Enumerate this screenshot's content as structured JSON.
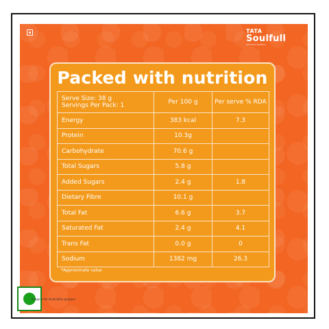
{
  "brand": {
    "parent": "TATA",
    "name": "Soulfull",
    "tagline": "Goodness Nutrition"
  },
  "card": {
    "title": "Packed with nutrition",
    "header": {
      "serve_size": "Serve Size: 38 g",
      "servings": "Servings Per Pack: 1",
      "per100": "Per 100 g",
      "rda": "Per serve % RDA"
    },
    "rows": [
      {
        "nutrient": "Energy",
        "per100": "383 kcal",
        "rda": "7.3"
      },
      {
        "nutrient": "Protein",
        "per100": "10.3g",
        "rda": ""
      },
      {
        "nutrient": "Carbohydrate",
        "per100": "70.6 g",
        "rda": ""
      },
      {
        "nutrient": "Total Sugars",
        "per100": "5.8 g",
        "rda": ""
      },
      {
        "nutrient": "Added Sugars",
        "per100": "2.4 g",
        "rda": "1.8"
      },
      {
        "nutrient": "Dietary Fibre",
        "per100": "10.1 g",
        "rda": ""
      },
      {
        "nutrient": "Total Fat",
        "per100": "6.6 g",
        "rda": "3.7"
      },
      {
        "nutrient": "Saturated Fat",
        "per100": "2.4 g",
        "rda": "4.1"
      },
      {
        "nutrient": "Trans Fat",
        "per100": "0.0 g",
        "rda": "0"
      },
      {
        "nutrient": "Sodium",
        "per100": "1382 mg",
        "rda": "26.3"
      }
    ],
    "note": "*Approximate value"
  },
  "footer": {
    "disclaimer": "Image is for illustration purpose"
  },
  "colors": {
    "panel": "#f26522",
    "card": "#f39a1c",
    "veg_green": "#1aa01a"
  }
}
